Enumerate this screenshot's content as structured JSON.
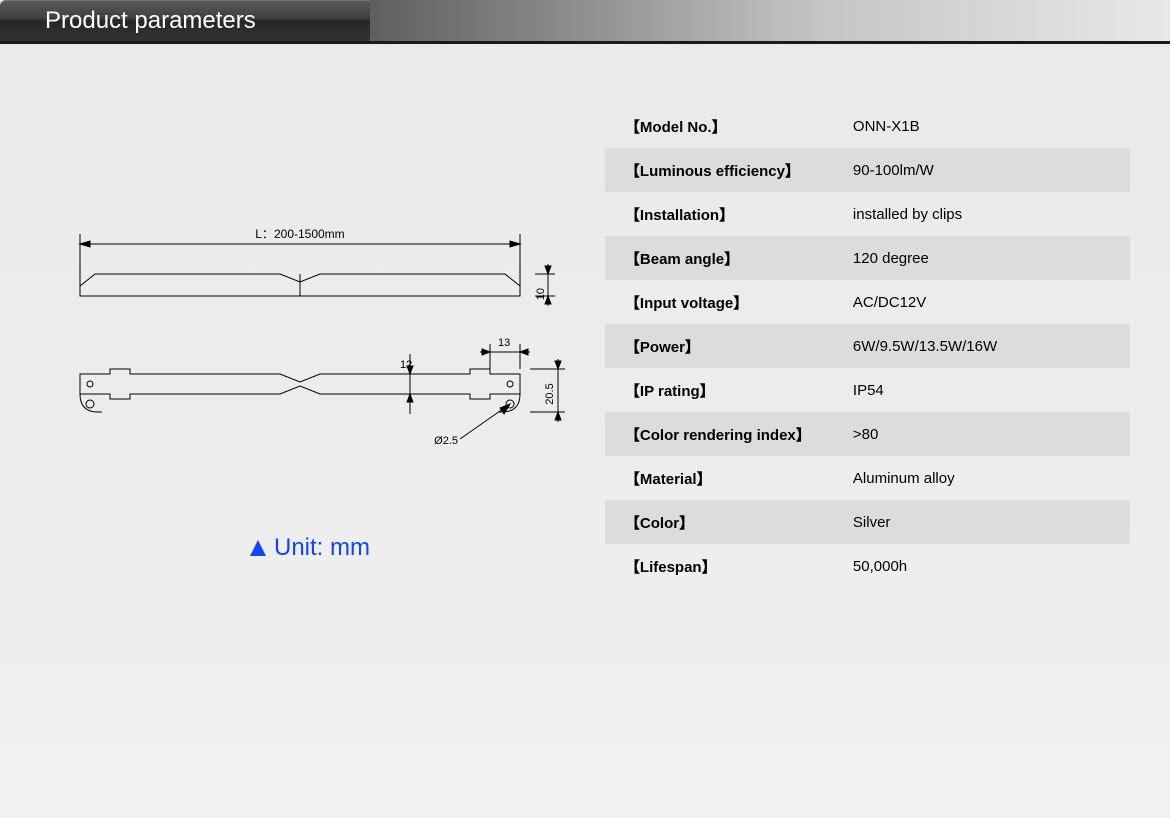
{
  "header": {
    "title": "Product parameters"
  },
  "unit": {
    "label": "Unit: mm"
  },
  "diagram": {
    "length_label": "L：200-1500mm",
    "height_label": "10",
    "dim12": "12",
    "dim13": "13",
    "dim205": "20.5",
    "phi": "Ø2.5",
    "stroke": "#000000"
  },
  "params": [
    {
      "label": "【Model No.】",
      "value": "ONN-X1B"
    },
    {
      "label": "【Luminous efficiency】",
      "value": "90-100lm/W"
    },
    {
      "label": "【Installation】",
      "value": "installed by clips"
    },
    {
      "label": "【Beam angle】",
      "value": "120 degree"
    },
    {
      "label": "【Input voltage】",
      "value": "AC/DC12V"
    },
    {
      "label": "【Power】",
      "value": "6W/9.5W/13.5W/16W"
    },
    {
      "label": "【IP rating】",
      "value": "IP54"
    },
    {
      "label": "【Color rendering index】",
      "value": ">80"
    },
    {
      "label": "【Material】",
      "value": "Aluminum alloy"
    },
    {
      "label": "【Color】",
      "value": "Silver"
    },
    {
      "label": "【Lifespan】",
      "value": "50,000h"
    }
  ],
  "colors": {
    "row_alt_bg": "#dcdcdc",
    "text": "#000000",
    "unit_text": "#1445f5"
  }
}
